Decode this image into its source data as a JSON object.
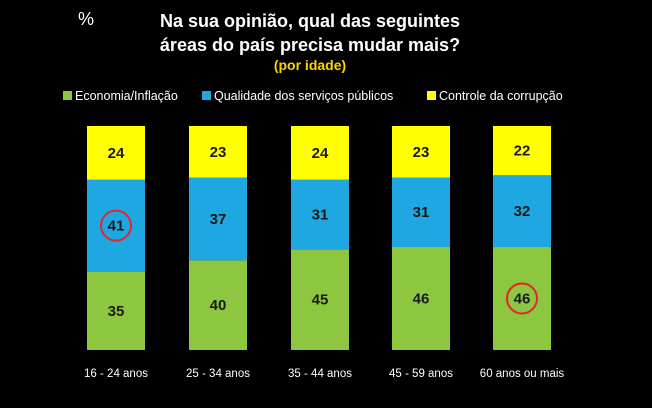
{
  "chart_data": {
    "type": "bar",
    "stacked": true,
    "unit_label": "%",
    "title_lines": [
      "Na sua opinião, qual das seguintes",
      "áreas do país precisa mudar mais?"
    ],
    "subtitle": "(por idade)",
    "categories": [
      "16  - 24 anos",
      "25 - 34 anos",
      "35 - 44 anos",
      "45 - 59 anos",
      "60 anos ou mais"
    ],
    "series": [
      {
        "name": "Economia/Inflação",
        "color": "#8dc63f",
        "values": [
          35,
          40,
          45,
          46,
          46
        ]
      },
      {
        "name": "Qualidade dos serviços públicos",
        "color": "#1ea7e1",
        "values": [
          41,
          37,
          31,
          31,
          32
        ]
      },
      {
        "name": "Controle da corrupção",
        "color": "#ffff00",
        "values": [
          24,
          23,
          24,
          23,
          22
        ]
      }
    ],
    "ylim": [
      0,
      100
    ],
    "grid": false,
    "legend_position": "top",
    "highlights": [
      {
        "series": 1,
        "category": 0,
        "color": "#e3262b"
      },
      {
        "series": 0,
        "category": 4,
        "color": "#e3262b"
      }
    ]
  }
}
